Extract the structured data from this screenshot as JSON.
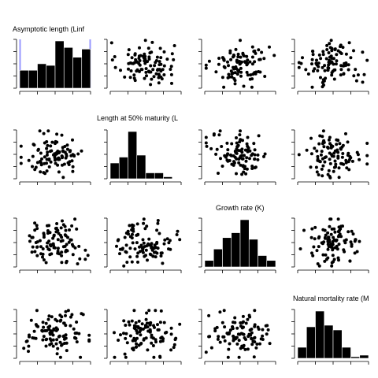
{
  "chart_data": {
    "type": "scatter",
    "variables": [
      "Asymptotic length (Linf",
      "Length at 50% maturity (L",
      "Growth rate (K)",
      "Natural mortality rate (M"
    ],
    "colors": {
      "ink": "#000000",
      "highlight": "#9999ff"
    },
    "histograms": [
      {
        "variable": 0,
        "bins": 8,
        "counts": [
          22,
          22,
          30,
          28,
          58,
          50,
          38,
          48
        ],
        "highlight": true
      },
      {
        "variable": 1,
        "bins": 8,
        "counts": [
          16,
          22,
          48,
          24,
          6,
          6,
          2,
          0
        ],
        "highlight": false
      },
      {
        "variable": 2,
        "bins": 8,
        "counts": [
          8,
          22,
          36,
          42,
          58,
          34,
          14,
          8
        ],
        "highlight": false
      },
      {
        "variable": 3,
        "bins": 8,
        "counts": [
          14,
          40,
          60,
          42,
          36,
          14,
          2,
          4
        ],
        "highlight": false
      }
    ],
    "scatter_seed": 20240611,
    "points_per_panel": 100
  }
}
